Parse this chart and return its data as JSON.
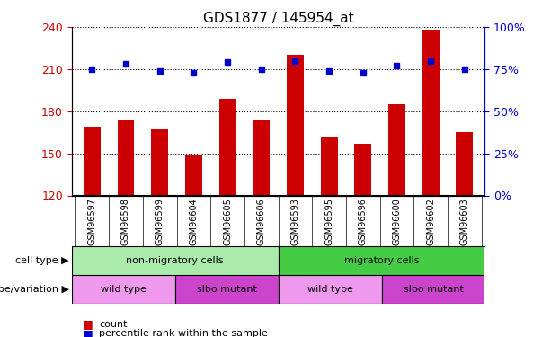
{
  "title": "GDS1877 / 145954_at",
  "samples": [
    "GSM96597",
    "GSM96598",
    "GSM96599",
    "GSM96604",
    "GSM96605",
    "GSM96606",
    "GSM96593",
    "GSM96595",
    "GSM96596",
    "GSM96600",
    "GSM96602",
    "GSM96603"
  ],
  "counts": [
    169,
    174,
    168,
    149,
    189,
    174,
    220,
    162,
    157,
    185,
    238,
    165
  ],
  "percentiles": [
    75,
    78,
    74,
    73,
    79,
    75,
    80,
    74,
    73,
    77,
    80,
    75
  ],
  "ylim_left": [
    120,
    240
  ],
  "ylim_right": [
    0,
    100
  ],
  "yticks_left": [
    120,
    150,
    180,
    210,
    240
  ],
  "yticks_right": [
    0,
    25,
    50,
    75,
    100
  ],
  "ytick_labels_right": [
    "0%",
    "25%",
    "50%",
    "75%",
    "100%"
  ],
  "bar_color": "#cc0000",
  "dot_color": "#0000cc",
  "cell_type_row": {
    "groups": [
      {
        "label": "non-migratory cells",
        "start": 0,
        "end": 6,
        "color": "#aaeaaa"
      },
      {
        "label": "migratory cells",
        "start": 6,
        "end": 12,
        "color": "#44cc44"
      }
    ]
  },
  "genotype_row": {
    "groups": [
      {
        "label": "wild type",
        "start": 0,
        "end": 3,
        "color": "#ee99ee"
      },
      {
        "label": "slbo mutant",
        "start": 3,
        "end": 6,
        "color": "#cc44cc"
      },
      {
        "label": "wild type",
        "start": 6,
        "end": 9,
        "color": "#ee99ee"
      },
      {
        "label": "slbo mutant",
        "start": 9,
        "end": 12,
        "color": "#cc44cc"
      }
    ]
  },
  "tick_label_color_left": "#cc0000",
  "tick_label_color_right": "#0000cc",
  "legend_count_color": "#cc0000",
  "legend_percentile_color": "#0000cc",
  "cell_type_label": "cell type",
  "genotype_label": "genotype/variation",
  "legend_count_text": "count",
  "legend_percentile_text": "percentile rank within the sample",
  "xtick_bg": "#cccccc"
}
